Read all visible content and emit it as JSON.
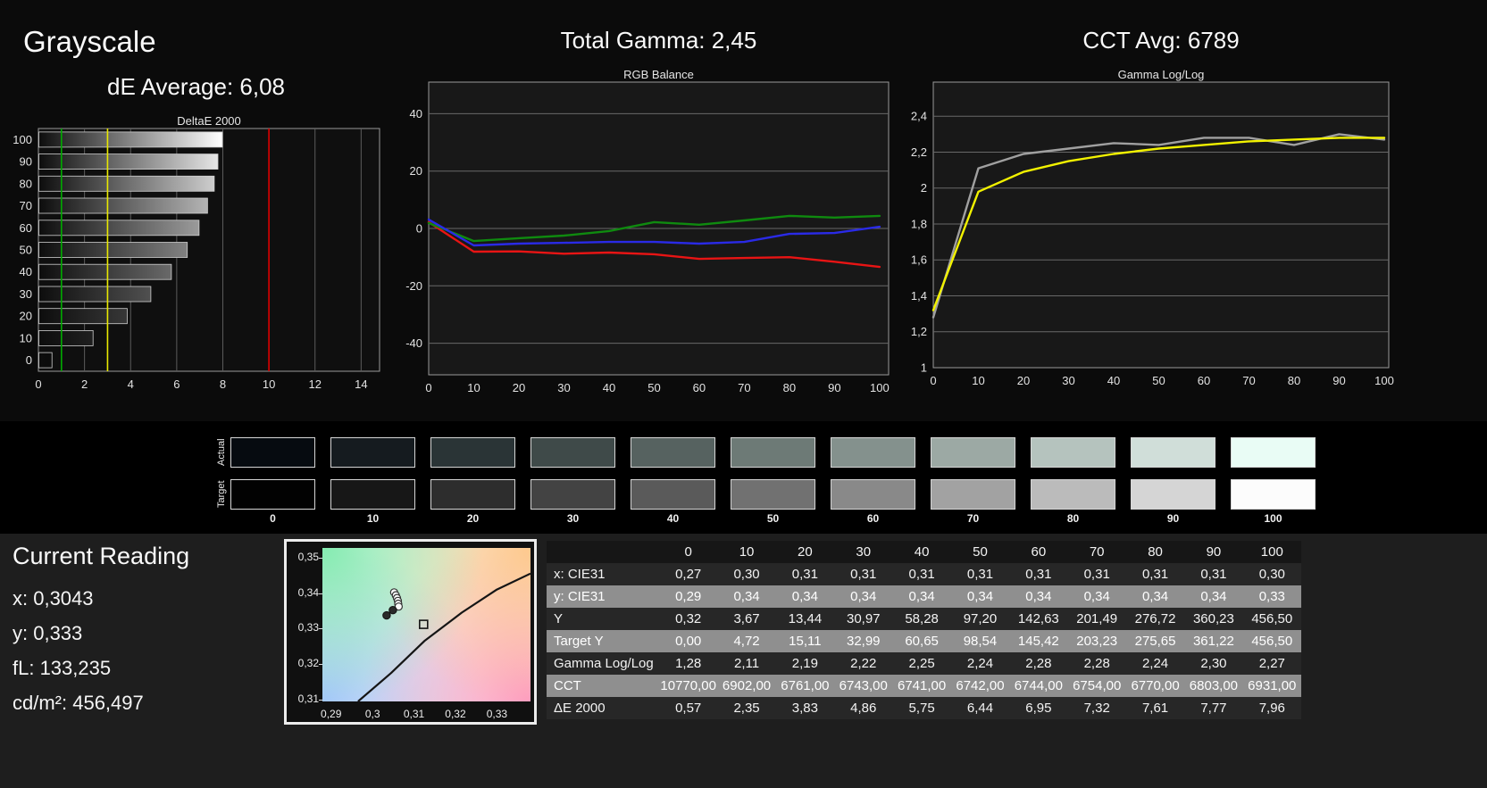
{
  "header": {
    "grayscale_title": "Grayscale",
    "de_average": "dE Average: 6,08",
    "total_gamma": "Total Gamma: 2,45",
    "cct_avg": "CCT Avg: 6789"
  },
  "chart_data": [
    {
      "id": "deltae2000",
      "type": "bar",
      "orientation": "horizontal",
      "title": "DeltaE 2000",
      "categories": [
        "100",
        "90",
        "80",
        "70",
        "60",
        "50",
        "40",
        "30",
        "20",
        "10",
        "0"
      ],
      "values": [
        7.96,
        7.77,
        7.61,
        7.32,
        6.95,
        6.44,
        5.75,
        4.86,
        3.83,
        2.35,
        0.57
      ],
      "bar_end_colors": [
        "#ffffff",
        "#e6e6e6",
        "#cdcdcd",
        "#b4b4b4",
        "#9b9b9b",
        "#828282",
        "#696969",
        "#505050",
        "#373737",
        "#1f1f1f",
        "#0c0c0c"
      ],
      "xlim": [
        0,
        14.8
      ],
      "xticks": [
        0,
        2,
        4,
        6,
        8,
        10,
        12,
        14
      ],
      "reference_lines": [
        {
          "name": "good",
          "value": 1,
          "color": "#00aa00"
        },
        {
          "name": "warning",
          "value": 3,
          "color": "#e8e800"
        },
        {
          "name": "bad",
          "value": 10,
          "color": "#dd0000"
        }
      ]
    },
    {
      "id": "rgb-balance",
      "type": "line",
      "title": "RGB Balance",
      "x": [
        0,
        10,
        20,
        30,
        40,
        50,
        60,
        70,
        80,
        90,
        100
      ],
      "xticks": [
        0,
        10,
        20,
        30,
        40,
        50,
        60,
        70,
        80,
        90,
        100
      ],
      "xlim": [
        0,
        102
      ],
      "ylim": [
        -51,
        51
      ],
      "yticks": [
        -40,
        -20,
        0,
        20,
        40
      ],
      "series": [
        {
          "name": "red",
          "color": "#e81414",
          "values": [
            2.2,
            -8.1,
            -8.0,
            -8.8,
            -8.4,
            -9.0,
            -10.6,
            -10.3,
            -10.0,
            -11.6,
            -13.4
          ]
        },
        {
          "name": "green",
          "color": "#0f8a0f",
          "values": [
            1.9,
            -4.4,
            -3.4,
            -2.5,
            -0.9,
            2.2,
            1.3,
            2.8,
            4.4,
            3.8,
            4.4
          ]
        },
        {
          "name": "blue",
          "color": "#2a2ae6",
          "values": [
            3.1,
            -5.9,
            -5.3,
            -5.0,
            -4.7,
            -4.7,
            -5.3,
            -4.7,
            -1.9,
            -1.6,
            0.6
          ]
        }
      ]
    },
    {
      "id": "gamma-loglog",
      "type": "line",
      "title": "Gamma Log/Log",
      "x": [
        0,
        10,
        20,
        30,
        40,
        50,
        60,
        70,
        80,
        90,
        100
      ],
      "xticks": [
        0,
        10,
        20,
        30,
        40,
        50,
        60,
        70,
        80,
        90,
        100
      ],
      "xlim": [
        0,
        101
      ],
      "ylim": [
        1,
        2.59
      ],
      "yticks": [
        1,
        1.2,
        1.4,
        1.6,
        1.8,
        2,
        2.2,
        2.4
      ],
      "ytick_labels": [
        "1",
        "1,2",
        "1,4",
        "1,6",
        "1,8",
        "2",
        "2,2",
        "2,4"
      ],
      "series": [
        {
          "name": "measured-gray",
          "color": "#a0a0a0",
          "values": [
            1.28,
            2.11,
            2.19,
            2.22,
            2.25,
            2.24,
            2.28,
            2.28,
            2.24,
            2.3,
            2.27
          ]
        },
        {
          "name": "target-yellow",
          "color": "#f2f200",
          "values": [
            1.32,
            1.98,
            2.09,
            2.15,
            2.19,
            2.22,
            2.24,
            2.26,
            2.27,
            2.28,
            2.28
          ]
        }
      ]
    }
  ],
  "swatches": {
    "row_labels": [
      "Actual",
      "Target"
    ],
    "levels": [
      "0",
      "10",
      "20",
      "30",
      "40",
      "50",
      "60",
      "70",
      "80",
      "90",
      "100"
    ],
    "actual": [
      "#060b10",
      "#151b1f",
      "#2a3436",
      "#3f4a49",
      "#566260",
      "#6d7a76",
      "#84918d",
      "#9ca9a4",
      "#b5c3be",
      "#d0ded9",
      "#e9fcf5"
    ],
    "target": [
      "#020202",
      "#171717",
      "#2d2d2d",
      "#434343",
      "#5a5a5a",
      "#717171",
      "#898989",
      "#a2a2a2",
      "#bbbbbb",
      "#d5d5d5",
      "#fcfcfc"
    ]
  },
  "current_reading": {
    "title": "Current Reading",
    "lines": [
      "x: 0,3043",
      "y: 0,333",
      "fL: 133,235",
      "cd/m²: 456,497"
    ]
  },
  "cie_plot": {
    "xlim": [
      0.2879,
      0.3381
    ],
    "ylim": [
      0.3095,
      0.3527
    ],
    "xticks": [
      0.29,
      0.3,
      0.31,
      0.32,
      0.33
    ],
    "xtick_labels": [
      "0,29",
      "0,3",
      "0,31",
      "0,32",
      "0,33"
    ],
    "yticks": [
      0.31,
      0.32,
      0.33,
      0.34,
      0.35
    ],
    "ytick_labels": [
      "0,31",
      "0,32",
      "0,33",
      "0,34",
      "0,35"
    ],
    "locus": [
      [
        0.2965,
        0.3095
      ],
      [
        0.3045,
        0.3175
      ],
      [
        0.3125,
        0.3265
      ],
      [
        0.3215,
        0.3345
      ],
      [
        0.33,
        0.341
      ],
      [
        0.3381,
        0.3455
      ]
    ],
    "points_open": [
      [
        0.3052,
        0.3402
      ],
      [
        0.3056,
        0.3394
      ],
      [
        0.3059,
        0.3386
      ],
      [
        0.3061,
        0.3378
      ],
      [
        0.3062,
        0.337
      ],
      [
        0.3063,
        0.3362
      ]
    ],
    "points_filled": [
      [
        0.3034,
        0.3337
      ],
      [
        0.3049,
        0.3352
      ]
    ],
    "target_square": [
      0.3123,
      0.3312
    ]
  },
  "table": {
    "header": [
      "",
      "0",
      "10",
      "20",
      "30",
      "40",
      "50",
      "60",
      "70",
      "80",
      "90",
      "100"
    ],
    "rows": [
      {
        "label": "x: CIE31",
        "values": [
          "0,27",
          "0,30",
          "0,31",
          "0,31",
          "0,31",
          "0,31",
          "0,31",
          "0,31",
          "0,31",
          "0,31",
          "0,30"
        ]
      },
      {
        "label": "y: CIE31",
        "values": [
          "0,29",
          "0,34",
          "0,34",
          "0,34",
          "0,34",
          "0,34",
          "0,34",
          "0,34",
          "0,34",
          "0,34",
          "0,33"
        ]
      },
      {
        "label": "Y",
        "values": [
          "0,32",
          "3,67",
          "13,44",
          "30,97",
          "58,28",
          "97,20",
          "142,63",
          "201,49",
          "276,72",
          "360,23",
          "456,50"
        ]
      },
      {
        "label": "Target Y",
        "values": [
          "0,00",
          "4,72",
          "15,11",
          "32,99",
          "60,65",
          "98,54",
          "145,42",
          "203,23",
          "275,65",
          "361,22",
          "456,50"
        ]
      },
      {
        "label": "Gamma Log/Log",
        "values": [
          "1,28",
          "2,11",
          "2,19",
          "2,22",
          "2,25",
          "2,24",
          "2,28",
          "2,28",
          "2,24",
          "2,30",
          "2,27"
        ]
      },
      {
        "label": "CCT",
        "values": [
          "10770,00",
          "6902,00",
          "6761,00",
          "6743,00",
          "6741,00",
          "6742,00",
          "6744,00",
          "6754,00",
          "6770,00",
          "6803,00",
          "6931,00"
        ]
      },
      {
        "label": "ΔE 2000",
        "values": [
          "0,57",
          "2,35",
          "3,83",
          "4,86",
          "5,75",
          "6,44",
          "6,95",
          "7,32",
          "7,61",
          "7,77",
          "7,96"
        ]
      }
    ]
  }
}
